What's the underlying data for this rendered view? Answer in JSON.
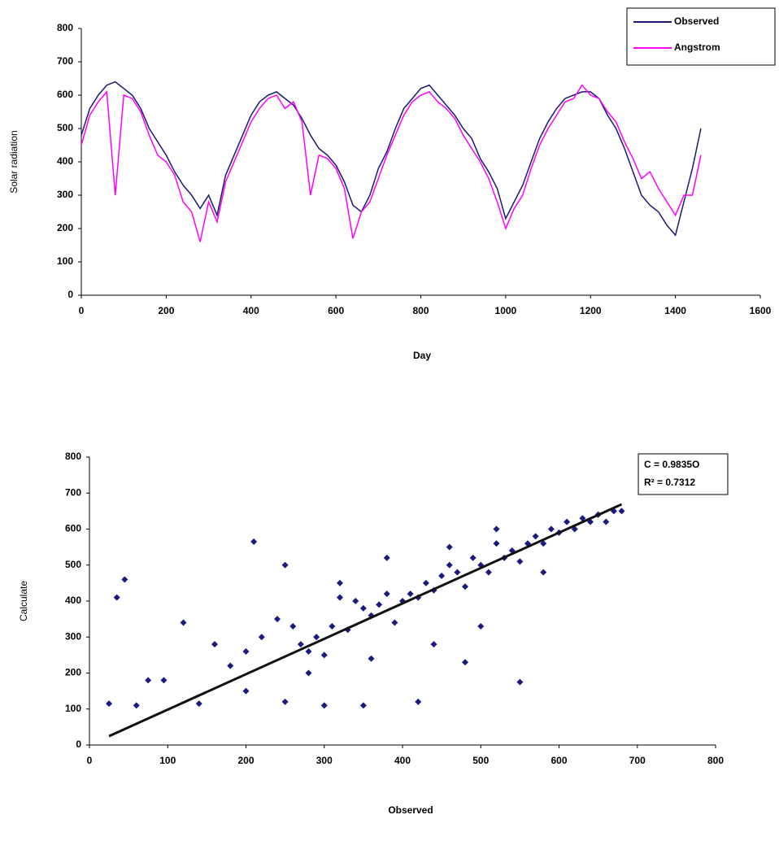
{
  "chart_data": [
    {
      "type": "line",
      "xlabel": "Day",
      "ylabel": "Solar radiation",
      "x": [
        0,
        20,
        40,
        60,
        80,
        100,
        120,
        140,
        160,
        180,
        200,
        220,
        240,
        260,
        280,
        300,
        320,
        340,
        360,
        380,
        400,
        420,
        440,
        460,
        480,
        500,
        520,
        540,
        560,
        580,
        600,
        620,
        640,
        660,
        680,
        700,
        720,
        740,
        760,
        780,
        800,
        820,
        840,
        860,
        880,
        900,
        920,
        940,
        960,
        980,
        1000,
        1020,
        1040,
        1060,
        1080,
        1100,
        1120,
        1140,
        1160,
        1180,
        1200,
        1220,
        1240,
        1260,
        1280,
        1300,
        1320,
        1340,
        1360,
        1380,
        1400,
        1420,
        1440,
        1460
      ],
      "series": [
        {
          "name": "Observed",
          "color": "#1a1a6e",
          "values": [
            480,
            560,
            600,
            630,
            640,
            620,
            600,
            560,
            500,
            460,
            420,
            370,
            330,
            300,
            260,
            300,
            240,
            360,
            420,
            480,
            540,
            580,
            600,
            610,
            590,
            570,
            530,
            480,
            440,
            420,
            390,
            340,
            270,
            250,
            300,
            380,
            430,
            500,
            560,
            590,
            620,
            630,
            600,
            570,
            540,
            500,
            470,
            410,
            370,
            320,
            230,
            280,
            330,
            400,
            470,
            520,
            560,
            590,
            600,
            610,
            610,
            590,
            540,
            500,
            440,
            370,
            300,
            270,
            250,
            210,
            180,
            280,
            380,
            500
          ]
        },
        {
          "name": "Angstrom",
          "color": "#ff00ff",
          "values": [
            450,
            540,
            580,
            610,
            300,
            600,
            590,
            550,
            480,
            420,
            400,
            360,
            280,
            250,
            160,
            280,
            220,
            340,
            400,
            460,
            520,
            560,
            590,
            600,
            560,
            580,
            520,
            300,
            420,
            410,
            380,
            320,
            170,
            250,
            280,
            350,
            420,
            480,
            540,
            580,
            600,
            610,
            580,
            560,
            530,
            480,
            440,
            400,
            350,
            280,
            200,
            260,
            300,
            380,
            450,
            500,
            540,
            580,
            590,
            630,
            600,
            590,
            550,
            520,
            460,
            410,
            350,
            370,
            320,
            280,
            240,
            300,
            300,
            420
          ]
        }
      ],
      "xlim": [
        0,
        1600
      ],
      "xticks": [
        0,
        200,
        400,
        600,
        800,
        1000,
        1200,
        1400,
        1600
      ],
      "ylim": [
        0,
        800
      ],
      "yticks": [
        0,
        100,
        200,
        300,
        400,
        500,
        600,
        700,
        800
      ],
      "legend": "top-right"
    },
    {
      "type": "scatter",
      "xlabel": "Observed",
      "ylabel": "Calculate",
      "annotations": [
        "C = 0.9835O",
        "R² = 0.7312"
      ],
      "series": [
        {
          "color": "#1a1a80",
          "x": [
            25,
            35,
            45,
            60,
            75,
            95,
            120,
            140,
            160,
            180,
            200,
            210,
            220,
            240,
            250,
            260,
            270,
            280,
            290,
            300,
            310,
            320,
            330,
            340,
            350,
            360,
            370,
            380,
            390,
            400,
            410,
            420,
            430,
            440,
            450,
            460,
            470,
            480,
            490,
            500,
            510,
            520,
            530,
            540,
            550,
            560,
            570,
            580,
            590,
            600,
            610,
            620,
            630,
            640,
            650,
            660,
            670,
            680,
            300,
            350,
            420,
            480,
            550,
            250,
            320,
            380,
            460,
            520,
            200,
            280,
            360,
            440,
            500,
            580
          ],
          "values": [
            115,
            410,
            460,
            110,
            180,
            180,
            340,
            115,
            280,
            220,
            260,
            565,
            300,
            350,
            500,
            330,
            280,
            260,
            300,
            250,
            330,
            410,
            320,
            400,
            380,
            360,
            390,
            420,
            340,
            400,
            420,
            410,
            450,
            430,
            470,
            500,
            480,
            440,
            520,
            500,
            480,
            560,
            520,
            540,
            510,
            560,
            580,
            560,
            600,
            590,
            620,
            600,
            630,
            620,
            640,
            620,
            650,
            650,
            110,
            110,
            120,
            230,
            175,
            120,
            450,
            520,
            550,
            600,
            150,
            200,
            240,
            280,
            330,
            480
          ]
        }
      ],
      "trendline": {
        "color": "#111111",
        "x": [
          25,
          680
        ],
        "values": [
          24.6,
          668.8
        ]
      },
      "xlim": [
        0,
        800
      ],
      "xticks": [
        0,
        100,
        200,
        300,
        400,
        500,
        600,
        700,
        800
      ],
      "ylim": [
        0,
        800
      ],
      "yticks": [
        0,
        100,
        200,
        300,
        400,
        500,
        600,
        700,
        800
      ]
    }
  ]
}
